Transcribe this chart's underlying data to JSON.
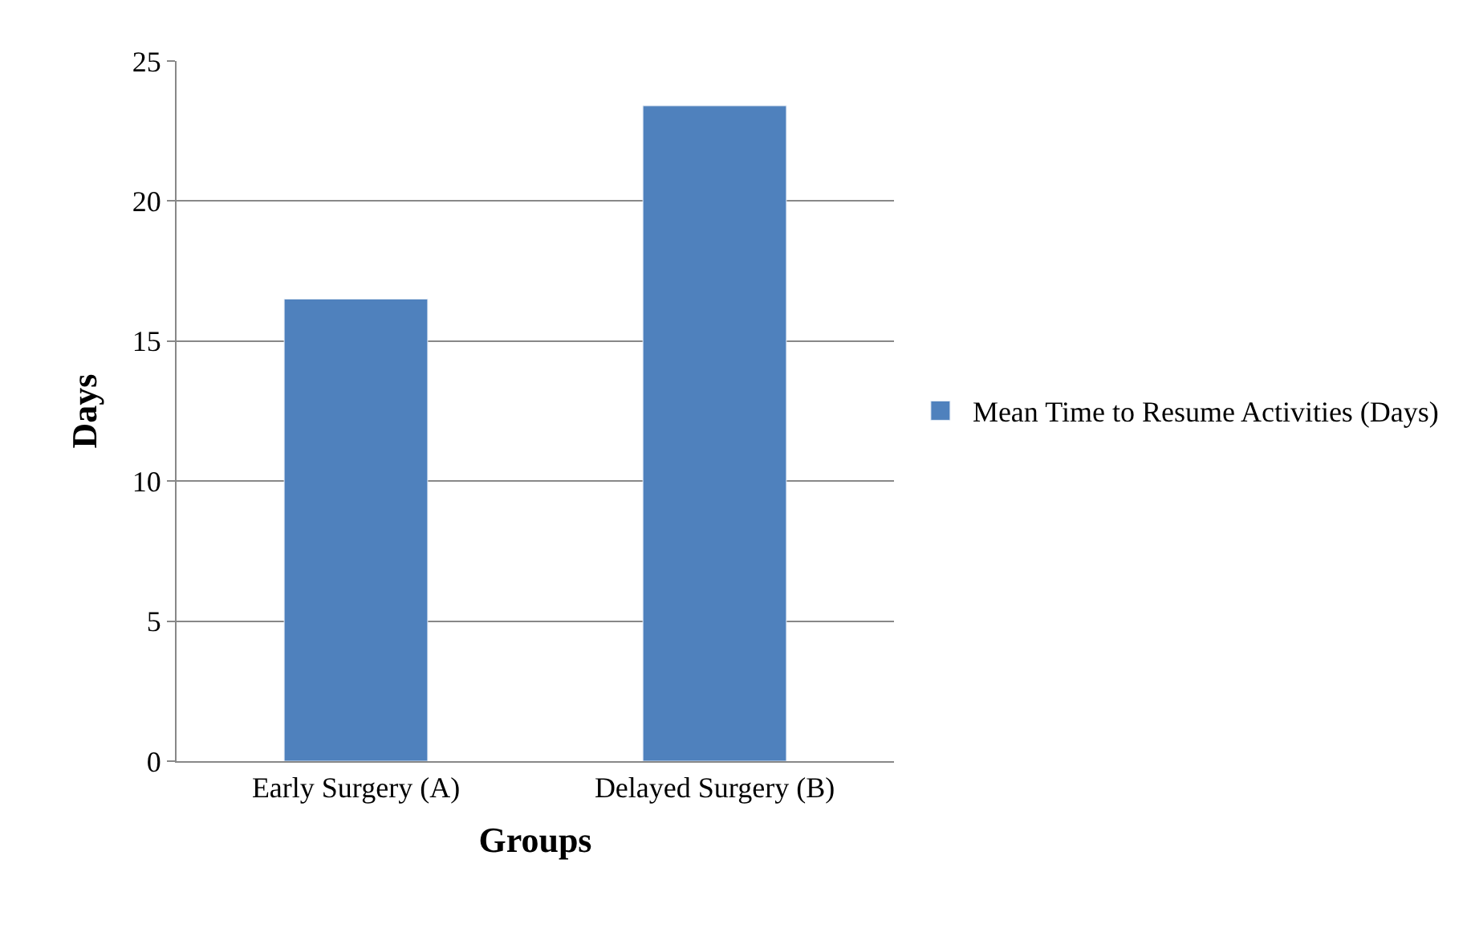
{
  "chart_data": {
    "type": "bar",
    "xlabel": "Groups",
    "ylabel": "Days",
    "categories": [
      "Early Surgery (A)",
      "Delayed Surgery (B)"
    ],
    "series": [
      {
        "name": "Mean Time to Resume Activities (Days)",
        "color": "#4f81bd",
        "values": [
          16.5,
          23.4
        ]
      }
    ],
    "ylim": [
      0,
      25
    ],
    "yticks": [
      0,
      5,
      10,
      15,
      20,
      25
    ],
    "grid": "y",
    "legend": "right"
  }
}
